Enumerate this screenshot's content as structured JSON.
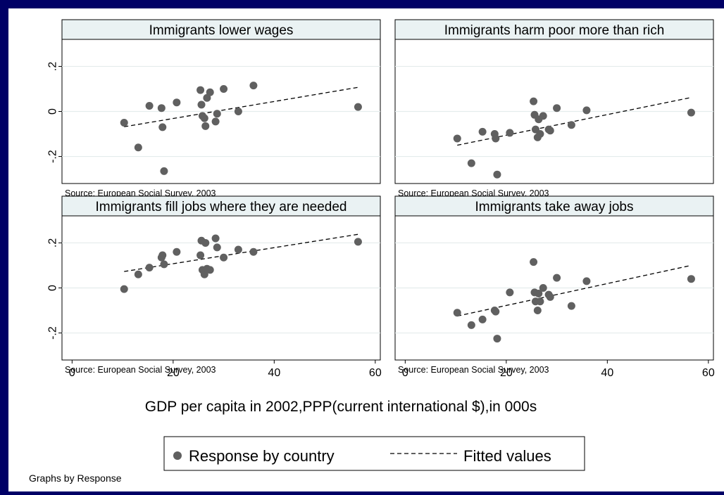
{
  "chart_data": {
    "type": "scatter",
    "note": "Graphs by Response",
    "xlabel": "GDP per capita in 2002,PPP(current international $),in 000s",
    "xlim": [
      -2,
      61
    ],
    "ylim": [
      -0.32,
      0.32
    ],
    "xticks": [
      "0",
      "20",
      "40",
      "60"
    ],
    "yticks": [
      {
        "v": 0.2,
        "label": ".2"
      },
      {
        "v": 0,
        "label": "0"
      },
      {
        "v": -0.2,
        "label": "-.2"
      }
    ],
    "source": "Source: European Social Survey, 2003",
    "legend": {
      "placement": "bottom",
      "points_label": "Response by country",
      "fit_label": "Fitted values"
    },
    "panels": [
      {
        "title": "Immigrants lower wages",
        "points": [
          [
            10.3,
            -0.05
          ],
          [
            13.1,
            -0.16
          ],
          [
            15.3,
            0.025
          ],
          [
            17.7,
            0.015
          ],
          [
            17.9,
            -0.07
          ],
          [
            18.2,
            -0.265
          ],
          [
            20.7,
            0.04
          ],
          [
            25.4,
            0.095
          ],
          [
            25.6,
            0.03
          ],
          [
            25.8,
            -0.02
          ],
          [
            26.2,
            -0.03
          ],
          [
            26.4,
            -0.065
          ],
          [
            26.7,
            0.06
          ],
          [
            27.3,
            0.085
          ],
          [
            28.4,
            -0.045
          ],
          [
            28.7,
            -0.01
          ],
          [
            30.0,
            0.1
          ],
          [
            32.9,
            0.0
          ],
          [
            35.9,
            0.115
          ],
          [
            56.6,
            0.02
          ]
        ],
        "fit": [
          [
            10.3,
            -0.068
          ],
          [
            56.6,
            0.107
          ]
        ]
      },
      {
        "title": "Immigrants harm poor more than rich",
        "points": [
          [
            10.3,
            -0.12
          ],
          [
            13.1,
            -0.23
          ],
          [
            15.3,
            -0.09
          ],
          [
            17.7,
            -0.1
          ],
          [
            17.9,
            -0.12
          ],
          [
            18.2,
            -0.28
          ],
          [
            20.7,
            -0.095
          ],
          [
            25.4,
            0.045
          ],
          [
            25.6,
            -0.015
          ],
          [
            25.8,
            -0.08
          ],
          [
            26.2,
            -0.115
          ],
          [
            26.4,
            -0.035
          ],
          [
            26.7,
            -0.1
          ],
          [
            27.3,
            -0.02
          ],
          [
            28.4,
            -0.08
          ],
          [
            28.7,
            -0.085
          ],
          [
            30.0,
            0.015
          ],
          [
            32.9,
            -0.06
          ],
          [
            35.9,
            0.005
          ],
          [
            56.6,
            -0.005
          ]
        ],
        "fit": [
          [
            10.3,
            -0.15
          ],
          [
            56.6,
            0.062
          ]
        ]
      },
      {
        "title": "Immigrants fill jobs where they are needed",
        "points": [
          [
            10.3,
            -0.005
          ],
          [
            13.1,
            0.06
          ],
          [
            15.3,
            0.09
          ],
          [
            17.7,
            0.135
          ],
          [
            17.9,
            0.145
          ],
          [
            18.2,
            0.105
          ],
          [
            20.7,
            0.16
          ],
          [
            25.4,
            0.145
          ],
          [
            25.6,
            0.21
          ],
          [
            25.8,
            0.08
          ],
          [
            26.2,
            0.06
          ],
          [
            26.4,
            0.2
          ],
          [
            26.7,
            0.085
          ],
          [
            27.3,
            0.08
          ],
          [
            28.4,
            0.22
          ],
          [
            28.7,
            0.18
          ],
          [
            30.0,
            0.135
          ],
          [
            32.9,
            0.17
          ],
          [
            35.9,
            0.16
          ],
          [
            56.6,
            0.205
          ]
        ],
        "fit": [
          [
            10.3,
            0.073
          ],
          [
            56.6,
            0.238
          ]
        ]
      },
      {
        "title": "Immigrants take away jobs",
        "points": [
          [
            10.3,
            -0.11
          ],
          [
            13.1,
            -0.165
          ],
          [
            15.3,
            -0.14
          ],
          [
            17.7,
            -0.1
          ],
          [
            17.9,
            -0.105
          ],
          [
            18.2,
            -0.225
          ],
          [
            20.7,
            -0.02
          ],
          [
            25.4,
            0.115
          ],
          [
            25.6,
            -0.02
          ],
          [
            25.8,
            -0.06
          ],
          [
            26.2,
            -0.1
          ],
          [
            26.4,
            -0.025
          ],
          [
            26.7,
            -0.06
          ],
          [
            27.3,
            0.0
          ],
          [
            28.4,
            -0.03
          ],
          [
            28.7,
            -0.04
          ],
          [
            30.0,
            0.045
          ],
          [
            32.9,
            -0.08
          ],
          [
            35.9,
            0.03
          ],
          [
            56.6,
            0.04
          ]
        ],
        "fit": [
          [
            10.3,
            -0.125
          ],
          [
            56.6,
            0.1
          ]
        ]
      }
    ]
  }
}
